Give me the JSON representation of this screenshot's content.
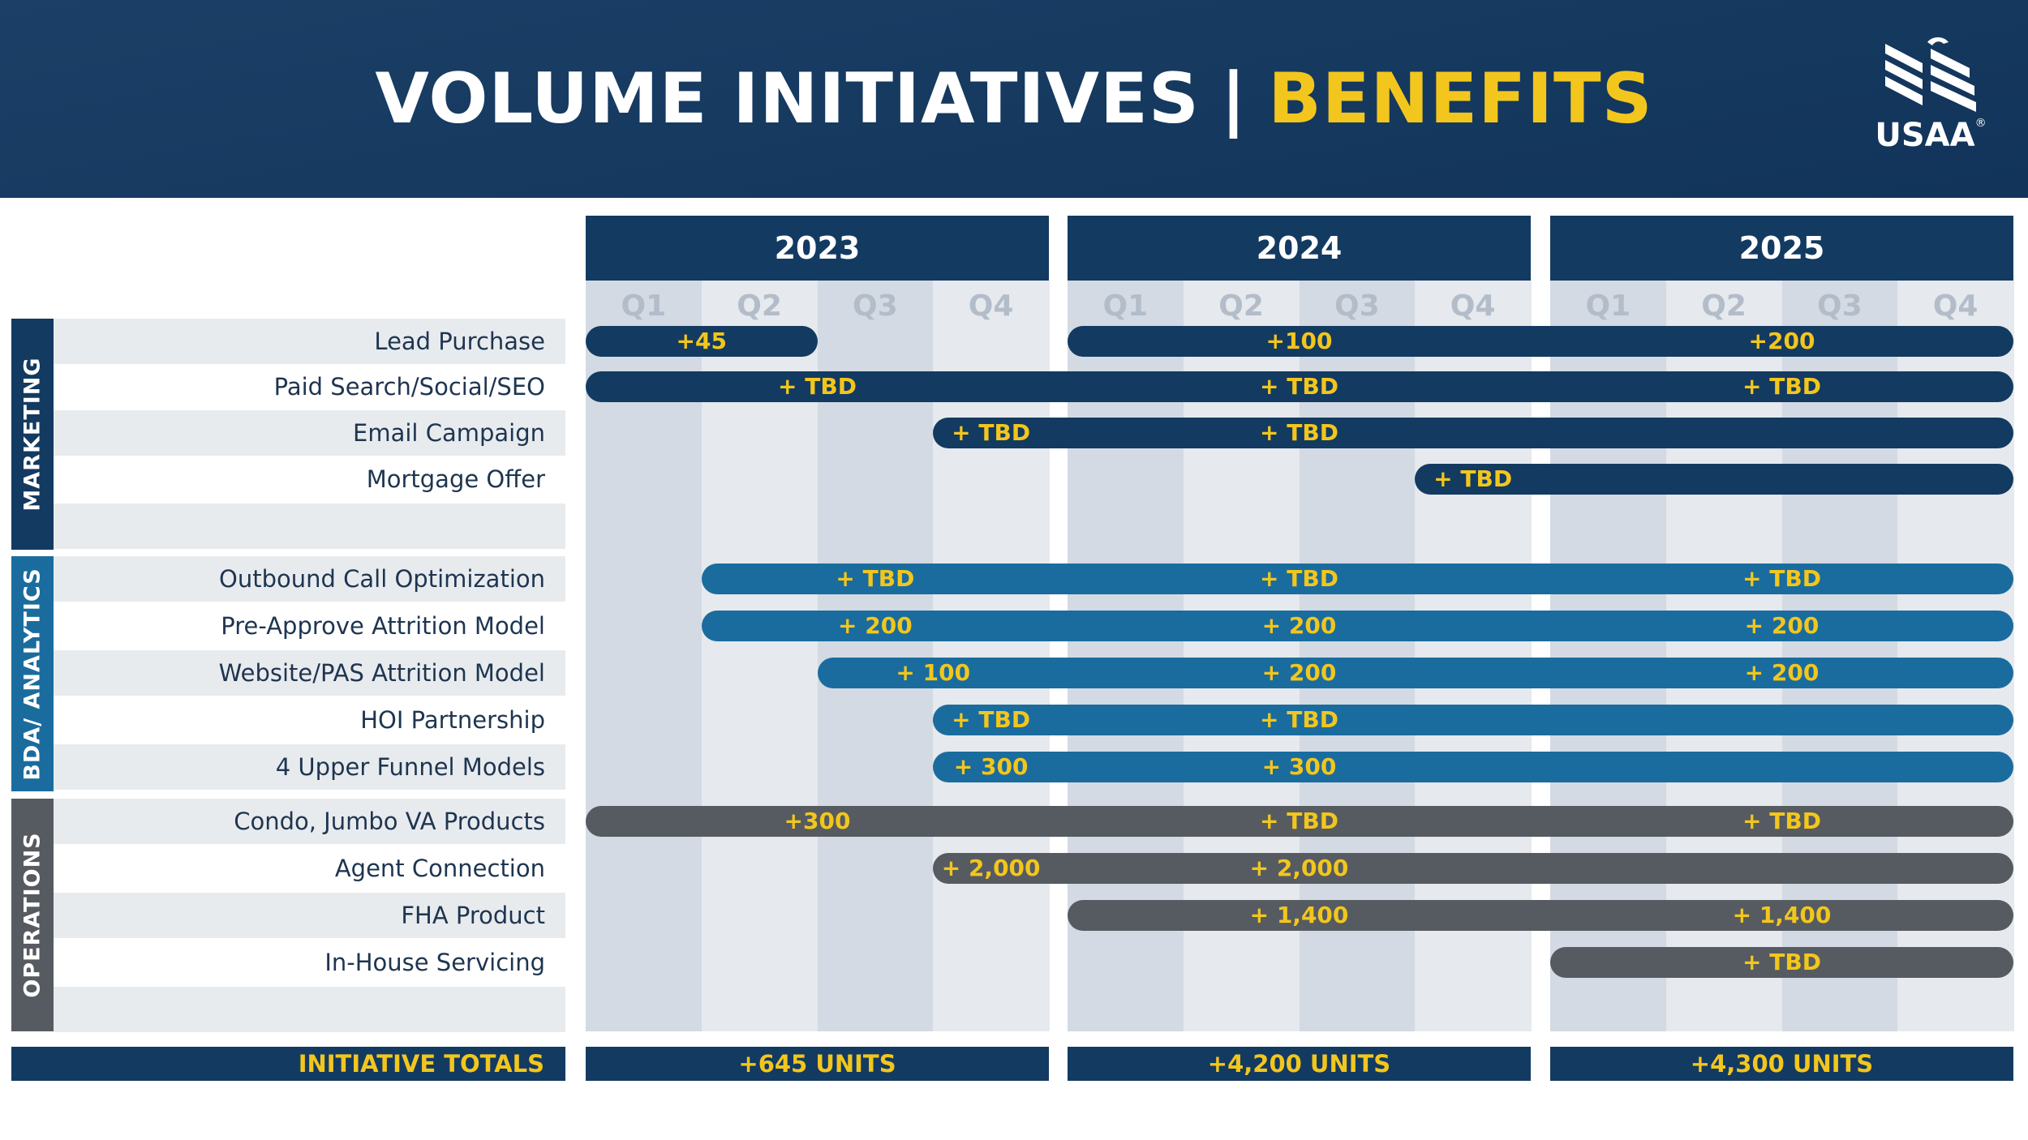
{
  "header": {
    "title_main": "VOLUME INITIATIVES",
    "title_separator": "|",
    "title_accent": "BENEFITS",
    "logo_text": "USAA",
    "logo_mark": "®",
    "logo_icon": "eagle-icon",
    "accent_color": "#f2c61d",
    "navy_color": "#133a61"
  },
  "chart_data": {
    "type": "gantt",
    "years": [
      "2023",
      "2024",
      "2025"
    ],
    "quarters": [
      "Q1",
      "Q2",
      "Q3",
      "Q4"
    ],
    "categories": [
      {
        "label": "MARKETING",
        "color": "#133a61",
        "rows": [
          {
            "label": "Lead Purchase",
            "bars": [
              {
                "start": 0,
                "end": 2,
                "labels": [
                  "+45"
                ]
              },
              {
                "start": 4,
                "end": 12,
                "labels": [
                  "+100",
                  "+200"
                ]
              }
            ]
          },
          {
            "label": "Paid Search/Social/SEO",
            "bars": [
              {
                "start": 0,
                "end": 12,
                "labels": [
                  "+ TBD",
                  "+ TBD",
                  "+ TBD"
                ]
              }
            ]
          },
          {
            "label": "Email Campaign",
            "bars": [
              {
                "start": 3,
                "end": 12,
                "labels": [
                  "+ TBD",
                  "+ TBD"
                ]
              }
            ]
          },
          {
            "label": "Mortgage Offer",
            "bars": [
              {
                "start": 7,
                "end": 12,
                "labels": [
                  "+ TBD"
                ]
              }
            ]
          },
          {
            "label": "",
            "bars": []
          }
        ]
      },
      {
        "label": "BDA/ ANALYTICS",
        "color": "#1a6c9e",
        "rows": [
          {
            "label": "Outbound Call Optimization",
            "bars": [
              {
                "start": 1,
                "end": 12,
                "labels": [
                  "+ TBD",
                  "+ TBD",
                  "+ TBD"
                ]
              }
            ]
          },
          {
            "label": "Pre-Approve Attrition Model",
            "bars": [
              {
                "start": 1,
                "end": 12,
                "labels": [
                  "+ 200",
                  "+ 200",
                  "+ 200"
                ]
              }
            ]
          },
          {
            "label": "Website/PAS Attrition Model",
            "bars": [
              {
                "start": 2,
                "end": 12,
                "labels": [
                  "+ 100",
                  "+ 200",
                  "+ 200"
                ]
              }
            ]
          },
          {
            "label": "HOI Partnership",
            "bars": [
              {
                "start": 3,
                "end": 12,
                "labels": [
                  "+ TBD",
                  "+ TBD"
                ]
              }
            ]
          },
          {
            "label": "4 Upper Funnel Models",
            "bars": [
              {
                "start": 3,
                "end": 12,
                "labels": [
                  "+ 300",
                  "+ 300"
                ]
              }
            ]
          }
        ]
      },
      {
        "label": "OPERATIONS",
        "color": "#565b61",
        "rows": [
          {
            "label": "Condo, Jumbo VA Products",
            "bars": [
              {
                "start": 0,
                "end": 12,
                "labels": [
                  "+300",
                  "+ TBD",
                  "+ TBD"
                ]
              }
            ]
          },
          {
            "label": "Agent Connection",
            "bars": [
              {
                "start": 3,
                "end": 12,
                "labels": [
                  "+ 2,000",
                  "+ 2,000"
                ]
              }
            ]
          },
          {
            "label": "FHA Product",
            "bars": [
              {
                "start": 4,
                "end": 12,
                "labels": [
                  "+ 1,400",
                  "+ 1,400"
                ]
              }
            ]
          },
          {
            "label": "In-House Servicing",
            "bars": [
              {
                "start": 8,
                "end": 12,
                "labels": [
                  "+ TBD"
                ]
              }
            ]
          },
          {
            "label": "",
            "bars": []
          }
        ]
      }
    ],
    "totals_label": "INITIATIVE TOTALS",
    "totals": [
      "+645 UNITS",
      "+4,200 UNITS",
      "+4,300 UNITS"
    ]
  }
}
